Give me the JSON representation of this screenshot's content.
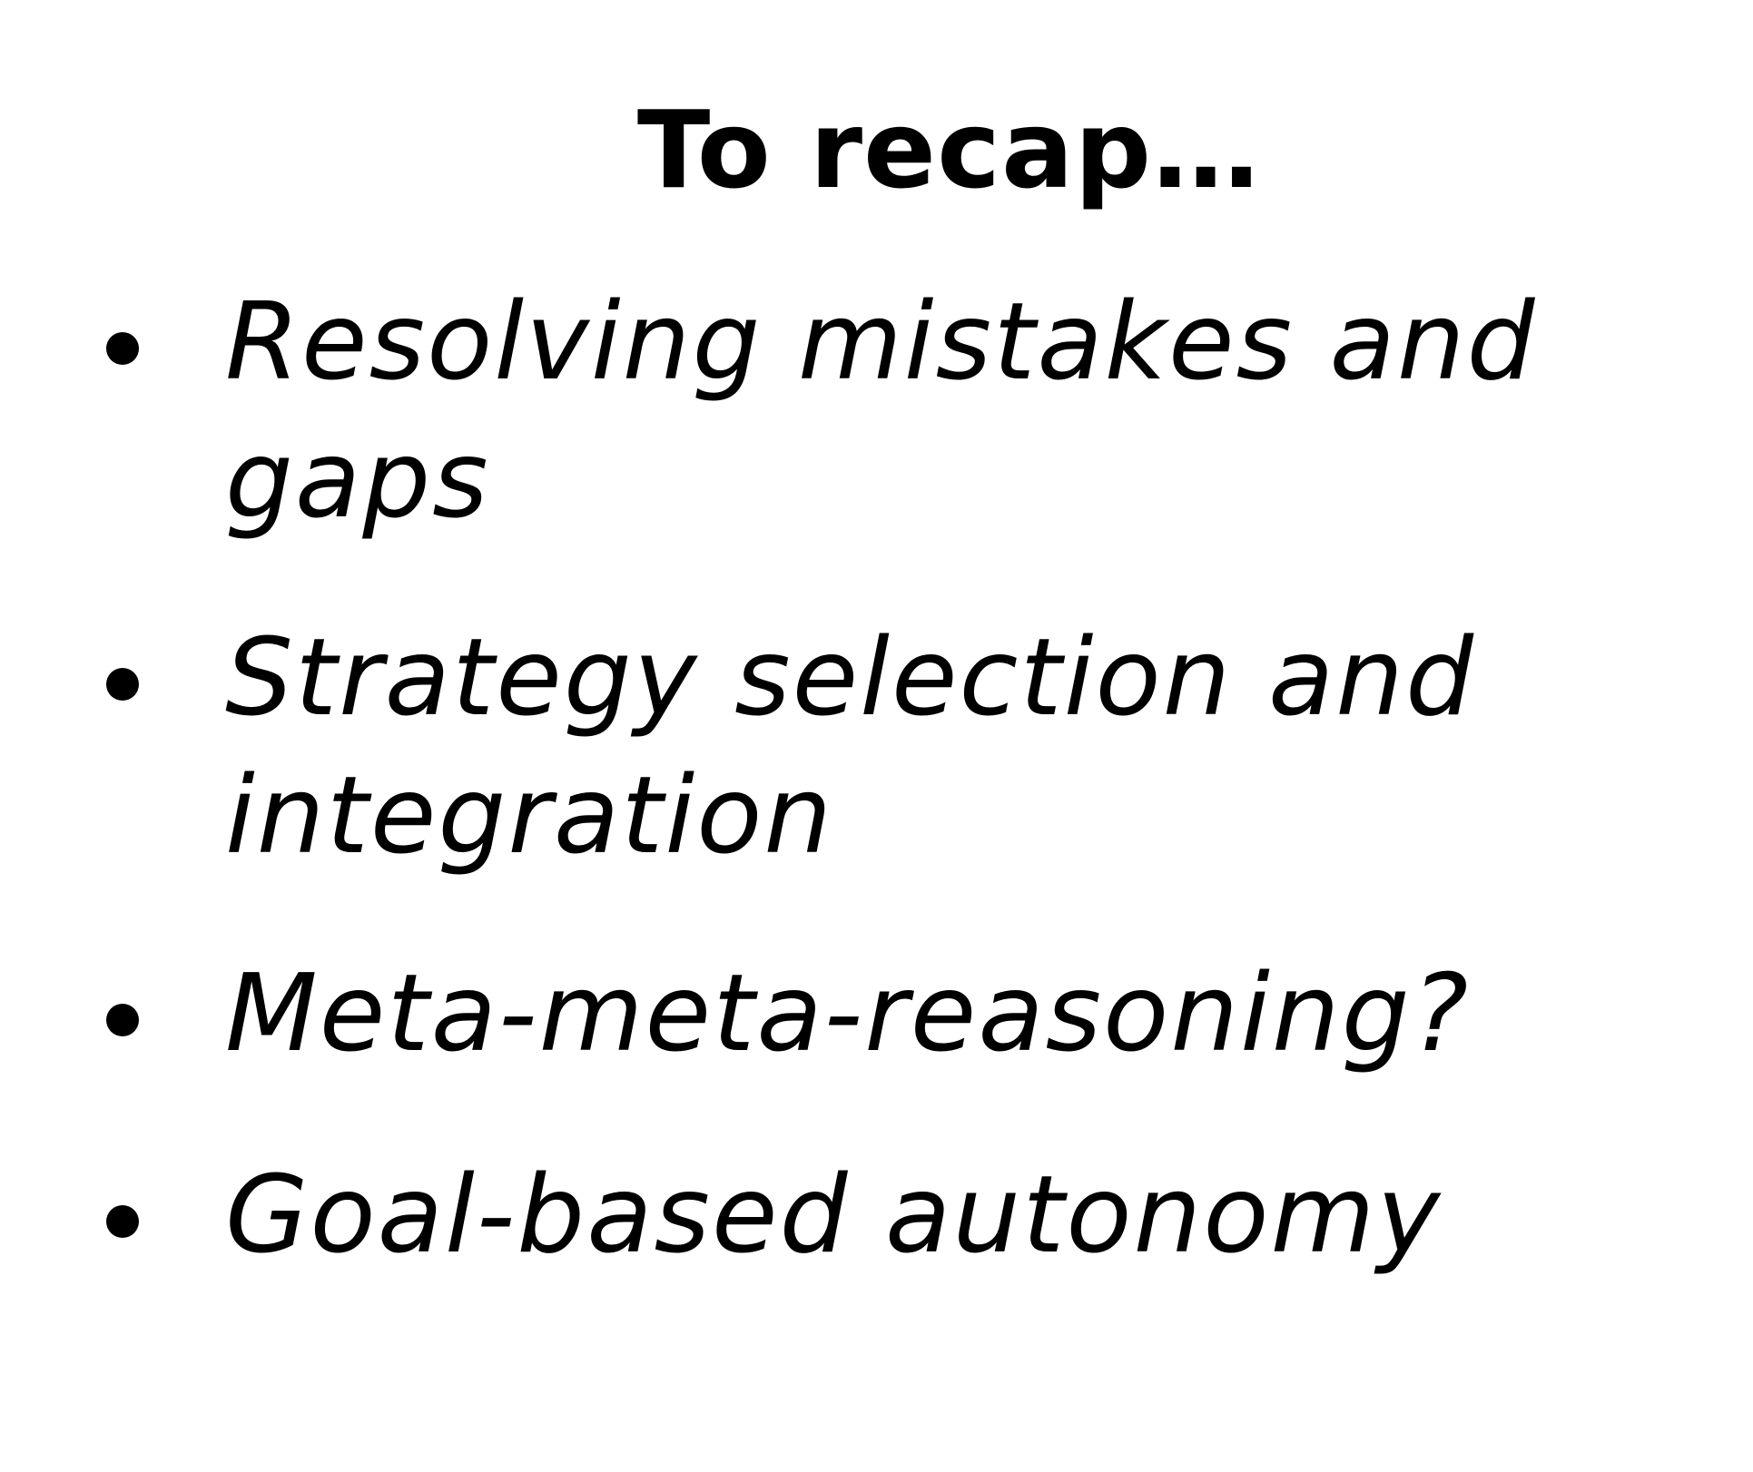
{
  "slide": {
    "title": "To recap…",
    "bullets": [
      {
        "text": "Resolving mistakes and gaps"
      },
      {
        "text": "Strategy selection and integration"
      },
      {
        "text": "Meta-meta-reasoning?"
      },
      {
        "text": "Goal-based autonomy"
      }
    ]
  }
}
